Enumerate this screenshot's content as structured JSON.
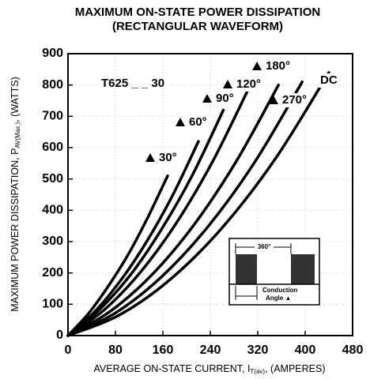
{
  "chart_data": {
    "type": "line",
    "title": "MAXIMUM ON-STATE POWER DISSIPATION",
    "subtitle": "(RECTANGULAR WAVEFORM)",
    "x_label": {
      "main": "AVERAGE ON-STATE CURRENT, I",
      "sub": "T(av)",
      "tail": ", (AMPERES)"
    },
    "y_label": {
      "main": "MAXIMUM POWER DISSIPATION, P",
      "sub": "AV(Max.)",
      "tail": ", (WATTS)"
    },
    "annotations": {
      "device": "T625 _ _ 30",
      "period": "360°",
      "conduction": "Conduction",
      "angle": "Angle ▲"
    },
    "xlim": [
      0,
      480
    ],
    "xticks": [
      0,
      80,
      160,
      240,
      320,
      400,
      480
    ],
    "ylim": [
      0,
      900
    ],
    "yticks": [
      0,
      100,
      200,
      300,
      400,
      500,
      600,
      700,
      800,
      900
    ],
    "grid": true,
    "series": [
      {
        "name": "30°",
        "color": "#000000",
        "x": [
          0,
          34,
          67,
          101,
          134,
          168
        ],
        "values": [
          0,
          69,
          155,
          257,
          375,
          510
        ]
      },
      {
        "name": "60°",
        "color": "#000000",
        "x": [
          0,
          44,
          88,
          132,
          176,
          220
        ],
        "values": [
          0,
          74,
          174,
          298,
          446,
          620
        ]
      },
      {
        "name": "90°",
        "color": "#000000",
        "x": [
          0,
          52,
          105,
          157,
          210,
          262
        ],
        "values": [
          0,
          81,
          193,
          337,
          513,
          720
        ]
      },
      {
        "name": "120°",
        "color": "#000000",
        "x": [
          0,
          61,
          122,
          183,
          244,
          305
        ],
        "values": [
          0,
          82,
          202,
          360,
          556,
          790
        ]
      },
      {
        "name": "180°",
        "color": "#000000",
        "x": [
          0,
          71,
          142,
          213,
          284,
          355
        ],
        "values": [
          0,
          77,
          195,
          355,
          557,
          800
        ]
      },
      {
        "name": "270°",
        "color": "#000000",
        "x": [
          0,
          79,
          158,
          237,
          316,
          395
        ],
        "values": [
          0,
          71,
          188,
          350,
          557,
          810
        ]
      },
      {
        "name": "DC",
        "color": "#000000",
        "x": [
          0,
          88,
          176,
          264,
          352,
          440
        ],
        "values": [
          0,
          67,
          185,
          353,
          571,
          840
        ]
      }
    ]
  }
}
